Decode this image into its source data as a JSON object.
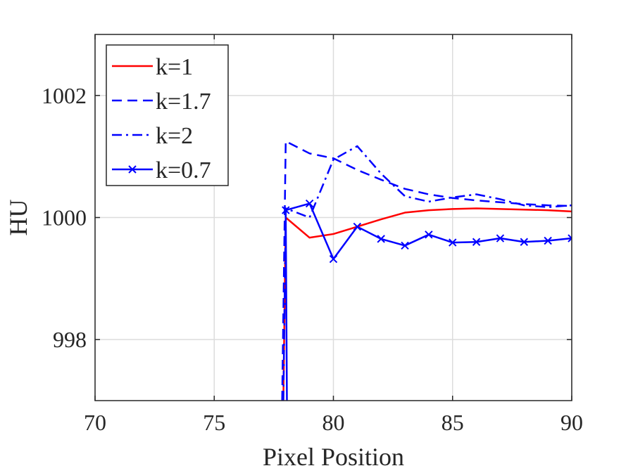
{
  "chart_data": {
    "type": "line",
    "title": "",
    "xlabel": "Pixel Position",
    "ylabel": "HU",
    "xlim": [
      70,
      90
    ],
    "ylim": [
      997,
      1003
    ],
    "xticks": [
      70,
      75,
      80,
      85,
      90
    ],
    "yticks": [
      998,
      1000,
      1002
    ],
    "grid": true,
    "legend_position": "top-left",
    "series": [
      {
        "name": "k=1",
        "color": "#ff0000",
        "line_style": "solid",
        "marker": "none",
        "x": [
          77.9,
          78,
          79,
          80,
          81,
          82,
          83,
          84,
          85,
          86,
          87,
          88,
          89,
          90
        ],
        "y": [
          997,
          1000.0,
          999.67,
          999.73,
          999.85,
          999.97,
          1000.08,
          1000.12,
          1000.14,
          1000.15,
          1000.14,
          1000.13,
          1000.12,
          1000.1
        ]
      },
      {
        "name": "k=1.7",
        "color": "#0000ff",
        "line_style": "dashed",
        "marker": "none",
        "x": [
          77.85,
          78,
          79,
          80,
          81,
          82,
          83,
          84,
          85,
          86,
          87,
          88,
          89,
          90
        ],
        "y": [
          997,
          1001.25,
          1001.05,
          1000.97,
          1000.78,
          1000.62,
          1000.47,
          1000.38,
          1000.32,
          1000.28,
          1000.25,
          1000.22,
          1000.2,
          1000.19
        ]
      },
      {
        "name": "k=2",
        "color": "#0000ff",
        "line_style": "dashdot",
        "marker": "none",
        "x": [
          77.9,
          78,
          79,
          80,
          81,
          82,
          83,
          84,
          85,
          86,
          87,
          88,
          89,
          90
        ],
        "y": [
          997,
          1000.15,
          1000.0,
          1000.95,
          1001.17,
          1000.72,
          1000.35,
          1000.26,
          1000.33,
          1000.38,
          1000.3,
          1000.2,
          1000.17,
          1000.2
        ]
      },
      {
        "name": "k=0.7",
        "color": "#0000ff",
        "line_style": "solid",
        "marker": "x",
        "x": [
          78.05,
          78,
          79,
          80,
          81,
          82,
          83,
          84,
          85,
          86,
          87,
          88,
          89,
          90
        ],
        "y": [
          997,
          1000.12,
          1000.23,
          999.32,
          999.85,
          999.65,
          999.54,
          999.72,
          999.59,
          999.6,
          999.66,
          999.6,
          999.62,
          999.66
        ],
        "marker_points": [
          1,
          2,
          3,
          4,
          5,
          6,
          7,
          8,
          9,
          10,
          11,
          12,
          13
        ]
      }
    ]
  }
}
